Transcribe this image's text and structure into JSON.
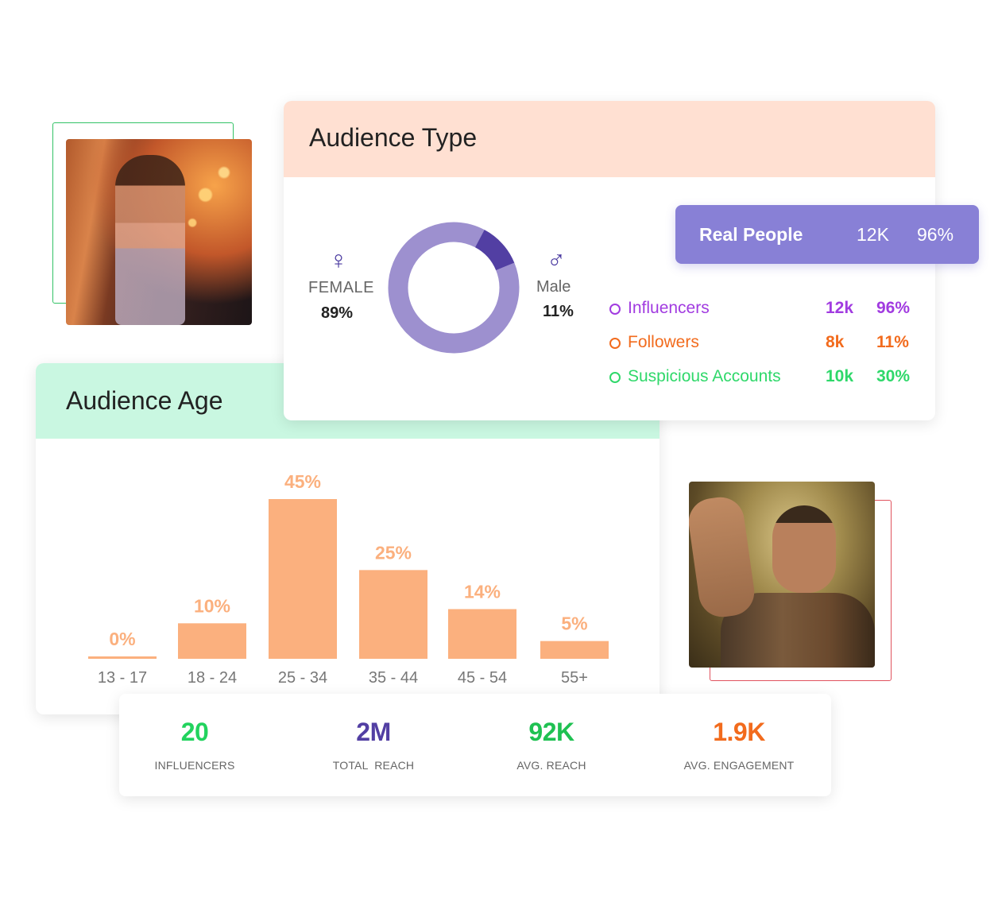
{
  "audience_type": {
    "title": "Audience Type",
    "female": {
      "symbol": "♀",
      "label": "FEMALE",
      "value": "89%",
      "fraction": 0.89
    },
    "male": {
      "symbol": "♂",
      "label": "Male",
      "value": "11%",
      "fraction": 0.11
    },
    "donut_colors": {
      "female": "#9d90cf",
      "male": "#523fa3"
    },
    "real_people": {
      "label": "Real People",
      "count": "12K",
      "percent": "96%",
      "color": "#8880d6"
    },
    "legend": [
      {
        "name": "Influencers",
        "count": "12k",
        "percent": "96%",
        "color": "#a13be0"
      },
      {
        "name": "Followers",
        "count": "8k",
        "percent": "11%",
        "color": "#f26b1d"
      },
      {
        "name": "Suspicious Accounts",
        "count": "10k",
        "percent": "30%",
        "color": "#2fd86a"
      }
    ]
  },
  "audience_age": {
    "title": "Audience Age"
  },
  "chart_data": {
    "type": "bar",
    "categories": [
      "13 - 17",
      "18 - 24",
      "25 - 34",
      "35 - 44",
      "45 - 54",
      "55+"
    ],
    "values": [
      0,
      10,
      45,
      25,
      14,
      5
    ],
    "labels": [
      "0%",
      "10%",
      "45%",
      "25%",
      "14%",
      "5%"
    ],
    "ylim": [
      0,
      45
    ],
    "bar_color": "#fbb07e",
    "grid": false
  },
  "stats": [
    {
      "value": "20",
      "label": "INFLUENCERS",
      "color": "#22d35e"
    },
    {
      "value": "2M",
      "label": "TOTAL  REACH",
      "color": "#523fa3"
    },
    {
      "value": "92K",
      "label": "AVG. REACH",
      "color": "#1fc152"
    },
    {
      "value": "1.9K",
      "label": "AVG. ENGAGEMENT",
      "color": "#f26b1d"
    }
  ]
}
